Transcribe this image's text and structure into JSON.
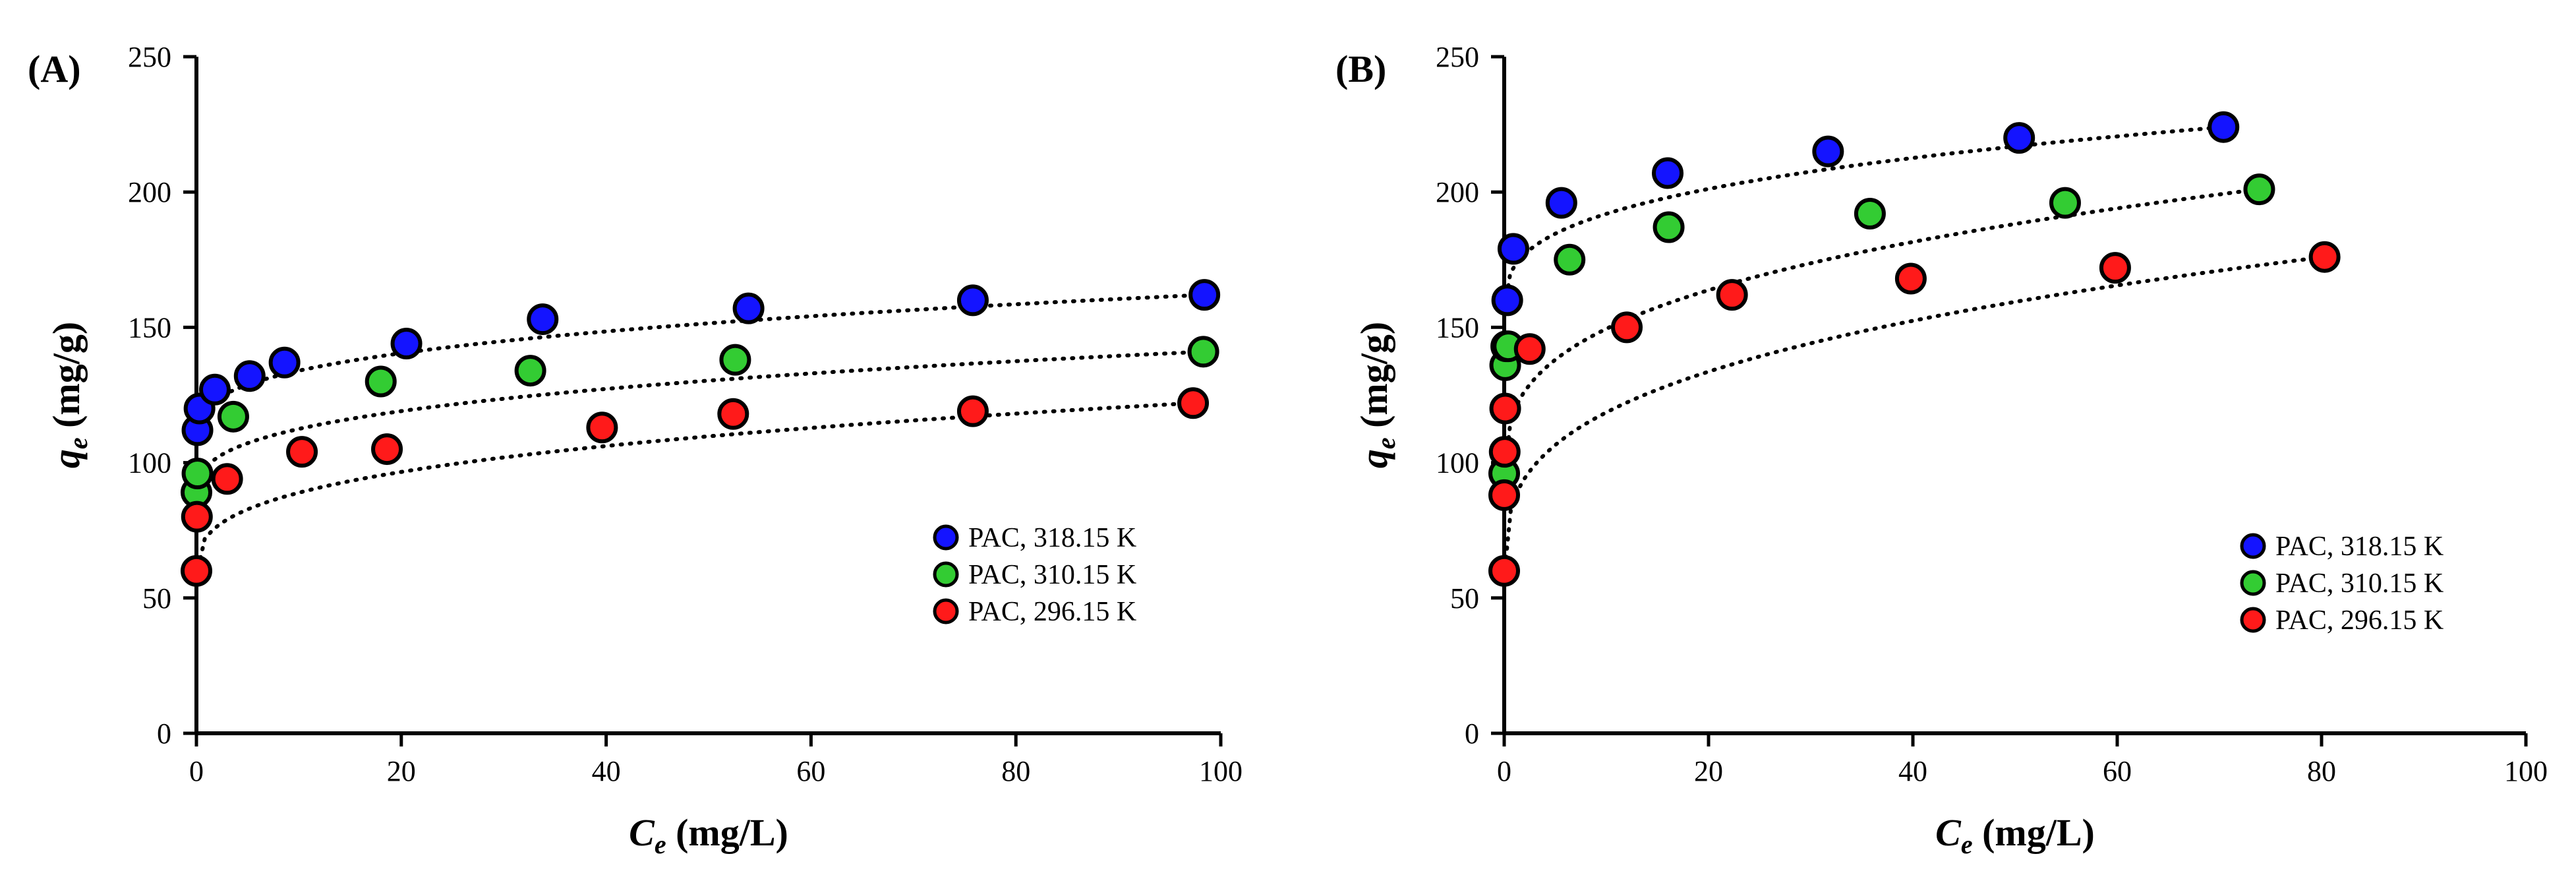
{
  "chart_data": [
    {
      "type": "scatter",
      "panel_label": "(A)",
      "xlabel": "C",
      "xlabel_sub": "e",
      "xlabel_unit": " (mg/L)",
      "ylabel": "q",
      "ylabel_sub": "e",
      "ylabel_unit": " (mg/g)",
      "xlim": [
        0,
        100
      ],
      "ylim": [
        0,
        250
      ],
      "xticks": [
        0,
        20,
        40,
        60,
        80,
        100
      ],
      "yticks": [
        0,
        50,
        100,
        150,
        200,
        250
      ],
      "legend_position": "lower-right",
      "series": [
        {
          "name": "PAC, 318.15 K",
          "color": "#1414ff",
          "x": [
            0.1,
            0.3,
            1.8,
            5.2,
            8.6,
            20.5,
            33.8,
            53.9,
            75.8,
            98.4
          ],
          "y": [
            112,
            120,
            127,
            132,
            137,
            144,
            153,
            157,
            160,
            162
          ],
          "trend": {
            "x0": 0,
            "y0": 108,
            "x1": 98.4,
            "y1": 162
          }
        },
        {
          "name": "PAC, 310.15 K",
          "color": "#33cc33",
          "x": [
            0,
            0.1,
            3.6,
            18.0,
            32.6,
            52.6,
            98.3
          ],
          "y": [
            89,
            96,
            117,
            130,
            134,
            138,
            141
          ],
          "trend": {
            "x0": 0,
            "y0": 86,
            "x1": 98.3,
            "y1": 141
          }
        },
        {
          "name": "PAC, 296.15 K",
          "color": "#ff1a1a",
          "x": [
            0,
            0.05,
            3.0,
            10.3,
            18.6,
            39.6,
            52.4,
            75.8,
            97.3
          ],
          "y": [
            60,
            80,
            94,
            104,
            105,
            113,
            118,
            119,
            122
          ],
          "trend": {
            "x0": 0,
            "y0": 58,
            "x1": 97.3,
            "y1": 122
          }
        }
      ]
    },
    {
      "type": "scatter",
      "panel_label": "(B)",
      "xlabel": "C",
      "xlabel_sub": "e",
      "xlabel_unit": " (mg/L)",
      "ylabel": "q",
      "ylabel_sub": "e",
      "ylabel_unit": " (mg/g)",
      "xlim": [
        0,
        100
      ],
      "ylim": [
        0,
        250
      ],
      "xticks": [
        0,
        20,
        40,
        60,
        80,
        100
      ],
      "yticks": [
        0,
        50,
        100,
        150,
        200,
        250
      ],
      "legend_position": "lower-right",
      "series": [
        {
          "name": "PAC, 318.15 K",
          "color": "#1414ff",
          "x": [
            0.3,
            0.9,
            5.6,
            16.0,
            31.7,
            50.4,
            70.4
          ],
          "y": [
            160,
            179,
            196,
            207,
            215,
            220,
            224
          ],
          "trend": {
            "x0": 0,
            "y0": 155,
            "x1": 70.4,
            "y1": 224
          }
        },
        {
          "name": "PAC, 310.15 K",
          "color": "#33cc33",
          "x": [
            0,
            0.1,
            0.2,
            0.4,
            6.4,
            16.1,
            35.8,
            54.9,
            73.9
          ],
          "y": [
            96,
            136,
            143,
            143,
            175,
            187,
            192,
            196,
            201
          ],
          "trend": {
            "x0": 0,
            "y0": 92,
            "x1": 73.9,
            "y1": 201
          }
        },
        {
          "name": "PAC, 296.15 K",
          "color": "#ff1a1a",
          "x": [
            0,
            0,
            0.05,
            0.1,
            2.5,
            12.0,
            22.3,
            39.8,
            59.8,
            80.3
          ],
          "y": [
            60,
            88,
            104,
            120,
            142,
            150,
            162,
            168,
            172,
            176
          ],
          "trend": {
            "x0": 0,
            "y0": 58,
            "x1": 80.3,
            "y1": 176
          }
        }
      ]
    }
  ]
}
